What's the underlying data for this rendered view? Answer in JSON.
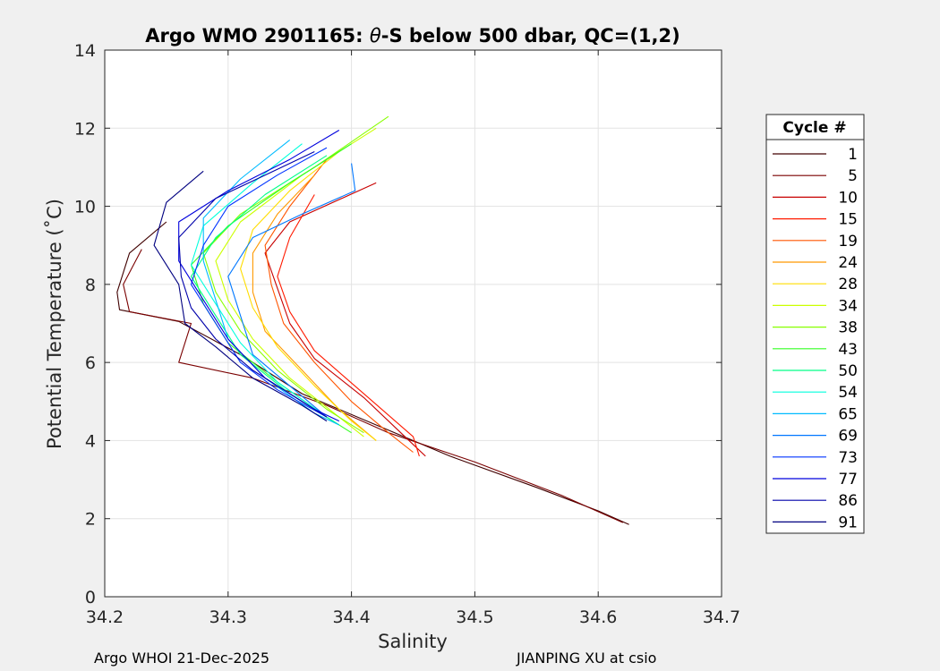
{
  "chart_data": {
    "type": "line",
    "title_prefix": "Argo WMO 2901165: ",
    "title_theta": "θ",
    "title_suffix": "-S below 500 dbar,  QC=(1,2)",
    "xlabel": "Salinity",
    "ylabel": "Potential Temperature (˚C)",
    "xlim": [
      34.2,
      34.7
    ],
    "ylim": [
      0,
      14
    ],
    "xticks": [
      "34.2",
      "34.3",
      "34.4",
      "34.5",
      "34.6",
      "34.7"
    ],
    "yticks": [
      "0",
      "2",
      "4",
      "6",
      "8",
      "10",
      "12",
      "14"
    ],
    "grid": true,
    "legend": {
      "title": "Cycle #",
      "placement": "outside-right",
      "entries": [
        {
          "label": "1",
          "color": "#400000"
        },
        {
          "label": "5",
          "color": "#7a0000"
        },
        {
          "label": "10",
          "color": "#c80000"
        },
        {
          "label": "15",
          "color": "#ff1a00"
        },
        {
          "label": "19",
          "color": "#ff5500"
        },
        {
          "label": "24",
          "color": "#ff9900"
        },
        {
          "label": "28",
          "color": "#ffdd00"
        },
        {
          "label": "34",
          "color": "#ccff00"
        },
        {
          "label": "38",
          "color": "#88ff00"
        },
        {
          "label": "43",
          "color": "#33ff22"
        },
        {
          "label": "50",
          "color": "#00ff88"
        },
        {
          "label": "54",
          "color": "#00ffdd"
        },
        {
          "label": "65",
          "color": "#00bbff"
        },
        {
          "label": "69",
          "color": "#0077ff"
        },
        {
          "label": "73",
          "color": "#0033ff"
        },
        {
          "label": "77",
          "color": "#0000dd"
        },
        {
          "label": "86",
          "color": "#0000aa"
        },
        {
          "label": "91",
          "color": "#000080"
        }
      ]
    },
    "series": [
      {
        "name": "1",
        "color": "#400000",
        "points": [
          [
            34.25,
            9.6
          ],
          [
            34.22,
            8.8
          ],
          [
            34.21,
            7.8
          ],
          [
            34.212,
            7.35
          ],
          [
            34.26,
            7.05
          ],
          [
            34.31,
            6.2
          ],
          [
            34.36,
            5.2
          ],
          [
            34.42,
            4.4
          ],
          [
            34.48,
            3.6
          ],
          [
            34.55,
            2.8
          ],
          [
            34.6,
            2.2
          ],
          [
            34.625,
            1.85
          ]
        ]
      },
      {
        "name": "5",
        "color": "#7a0000",
        "points": [
          [
            34.23,
            8.9
          ],
          [
            34.215,
            8.0
          ],
          [
            34.22,
            7.3
          ],
          [
            34.27,
            7.0
          ],
          [
            34.26,
            6.0
          ],
          [
            34.32,
            5.6
          ],
          [
            34.38,
            4.9
          ],
          [
            34.43,
            4.2
          ],
          [
            34.5,
            3.45
          ],
          [
            34.57,
            2.6
          ],
          [
            34.62,
            1.9
          ]
        ]
      },
      {
        "name": "10",
        "color": "#c80000",
        "points": [
          [
            34.42,
            10.6
          ],
          [
            34.35,
            9.6
          ],
          [
            34.33,
            8.8
          ],
          [
            34.34,
            7.9
          ],
          [
            34.35,
            7.0
          ],
          [
            34.37,
            6.1
          ],
          [
            34.41,
            5.1
          ],
          [
            34.44,
            4.2
          ],
          [
            34.46,
            3.6
          ]
        ]
      },
      {
        "name": "15",
        "color": "#ff1a00",
        "points": [
          [
            34.37,
            10.3
          ],
          [
            34.35,
            9.2
          ],
          [
            34.34,
            8.2
          ],
          [
            34.35,
            7.3
          ],
          [
            34.37,
            6.3
          ],
          [
            34.41,
            5.2
          ],
          [
            34.45,
            4.1
          ],
          [
            34.455,
            3.6
          ]
        ]
      },
      {
        "name": "19",
        "color": "#ff5500",
        "points": [
          [
            34.38,
            11.2
          ],
          [
            34.35,
            10.0
          ],
          [
            34.33,
            9.0
          ],
          [
            34.335,
            8.0
          ],
          [
            34.345,
            7.0
          ],
          [
            34.37,
            6.0
          ],
          [
            34.4,
            5.0
          ],
          [
            34.43,
            4.2
          ],
          [
            34.45,
            3.7
          ]
        ]
      },
      {
        "name": "24",
        "color": "#ff9900",
        "points": [
          [
            34.37,
            10.8
          ],
          [
            34.34,
            9.8
          ],
          [
            34.32,
            8.8
          ],
          [
            34.32,
            7.8
          ],
          [
            34.33,
            6.8
          ],
          [
            34.36,
            5.8
          ],
          [
            34.39,
            4.8
          ],
          [
            34.42,
            4.0
          ]
        ]
      },
      {
        "name": "28",
        "color": "#ffdd00",
        "points": [
          [
            34.39,
            11.4
          ],
          [
            34.35,
            10.4
          ],
          [
            34.32,
            9.4
          ],
          [
            34.31,
            8.4
          ],
          [
            34.32,
            7.4
          ],
          [
            34.34,
            6.4
          ],
          [
            34.37,
            5.4
          ],
          [
            34.4,
            4.5
          ],
          [
            34.42,
            4.0
          ]
        ]
      },
      {
        "name": "34",
        "color": "#ccff00",
        "points": [
          [
            34.42,
            12.0
          ],
          [
            34.36,
            10.8
          ],
          [
            34.31,
            9.6
          ],
          [
            34.29,
            8.6
          ],
          [
            34.3,
            7.6
          ],
          [
            34.32,
            6.6
          ],
          [
            34.35,
            5.6
          ],
          [
            34.39,
            4.6
          ],
          [
            34.41,
            4.1
          ]
        ]
      },
      {
        "name": "38",
        "color": "#88ff00",
        "points": [
          [
            34.43,
            12.3
          ],
          [
            34.37,
            11.0
          ],
          [
            34.31,
            9.8
          ],
          [
            34.28,
            8.8
          ],
          [
            34.29,
            7.8
          ],
          [
            34.31,
            6.8
          ],
          [
            34.34,
            5.8
          ],
          [
            34.38,
            4.8
          ],
          [
            34.41,
            4.2
          ]
        ]
      },
      {
        "name": "43",
        "color": "#33ff22",
        "points": [
          [
            34.4,
            11.6
          ],
          [
            34.35,
            10.6
          ],
          [
            34.3,
            9.5
          ],
          [
            34.27,
            8.5
          ],
          [
            34.28,
            7.5
          ],
          [
            34.3,
            6.5
          ],
          [
            34.34,
            5.5
          ],
          [
            34.38,
            4.6
          ],
          [
            34.4,
            4.2
          ]
        ]
      },
      {
        "name": "50",
        "color": "#00ff88",
        "points": [
          [
            34.38,
            11.3
          ],
          [
            34.33,
            10.3
          ],
          [
            34.29,
            9.2
          ],
          [
            34.27,
            8.2
          ],
          [
            34.29,
            7.2
          ],
          [
            34.31,
            6.2
          ],
          [
            34.35,
            5.2
          ],
          [
            34.39,
            4.4
          ]
        ]
      },
      {
        "name": "54",
        "color": "#00ffdd",
        "points": [
          [
            34.36,
            11.6
          ],
          [
            34.32,
            10.6
          ],
          [
            34.28,
            9.5
          ],
          [
            34.27,
            8.5
          ],
          [
            34.29,
            7.5
          ],
          [
            34.31,
            6.5
          ],
          [
            34.34,
            5.5
          ],
          [
            34.38,
            4.6
          ]
        ]
      },
      {
        "name": "65",
        "color": "#00bbff",
        "points": [
          [
            34.35,
            11.7
          ],
          [
            34.31,
            10.7
          ],
          [
            34.28,
            9.7
          ],
          [
            34.28,
            8.6
          ],
          [
            34.29,
            7.6
          ],
          [
            34.3,
            6.6
          ],
          [
            34.33,
            5.6
          ],
          [
            34.37,
            4.7
          ],
          [
            34.39,
            4.4
          ]
        ]
      },
      {
        "name": "69",
        "color": "#0077ff",
        "points": [
          [
            34.4,
            11.1
          ],
          [
            34.403,
            10.4
          ],
          [
            34.36,
            9.8
          ],
          [
            34.32,
            9.2
          ],
          [
            34.3,
            8.2
          ],
          [
            34.31,
            7.2
          ],
          [
            34.32,
            6.2
          ],
          [
            34.35,
            5.4
          ],
          [
            34.38,
            4.6
          ]
        ]
      },
      {
        "name": "73",
        "color": "#0033ff",
        "points": [
          [
            34.38,
            11.5
          ],
          [
            34.34,
            10.8
          ],
          [
            34.3,
            10.0
          ],
          [
            34.28,
            9.0
          ],
          [
            34.27,
            8.0
          ],
          [
            34.29,
            7.0
          ],
          [
            34.31,
            6.0
          ],
          [
            34.34,
            5.3
          ],
          [
            34.38,
            4.6
          ]
        ]
      },
      {
        "name": "77",
        "color": "#0000dd",
        "points": [
          [
            34.39,
            11.95
          ],
          [
            34.35,
            11.2
          ],
          [
            34.3,
            10.4
          ],
          [
            34.26,
            9.6
          ],
          [
            34.26,
            8.6
          ],
          [
            34.28,
            7.6
          ],
          [
            34.3,
            6.6
          ],
          [
            34.33,
            5.6
          ],
          [
            34.37,
            4.8
          ],
          [
            34.39,
            4.5
          ]
        ]
      },
      {
        "name": "86",
        "color": "#0000aa",
        "points": [
          [
            34.37,
            11.4
          ],
          [
            34.33,
            10.8
          ],
          [
            34.29,
            10.2
          ],
          [
            34.26,
            9.2
          ],
          [
            34.262,
            8.2
          ],
          [
            34.27,
            7.4
          ],
          [
            34.29,
            6.6
          ],
          [
            34.32,
            5.8
          ],
          [
            34.36,
            5.0
          ],
          [
            34.38,
            4.6
          ]
        ]
      },
      {
        "name": "91",
        "color": "#000080",
        "points": [
          [
            34.28,
            10.9
          ],
          [
            34.25,
            10.1
          ],
          [
            34.24,
            9.0
          ],
          [
            34.26,
            8.0
          ],
          [
            34.265,
            7.0
          ],
          [
            34.29,
            6.4
          ],
          [
            34.32,
            5.6
          ],
          [
            34.36,
            4.9
          ],
          [
            34.38,
            4.5
          ]
        ]
      }
    ]
  },
  "footer": {
    "left": "Argo WHOI 21-Dec-2025",
    "right": "JIANPING XU at csio"
  }
}
